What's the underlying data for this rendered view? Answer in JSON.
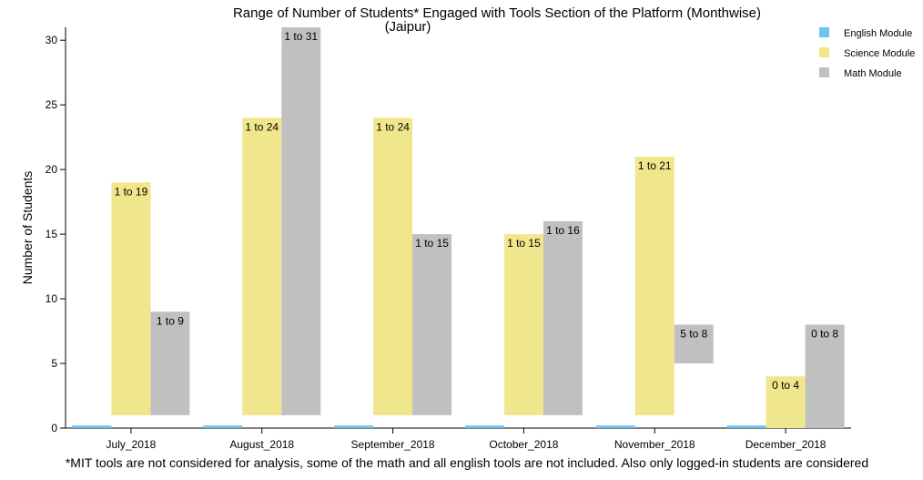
{
  "chart_data": {
    "type": "bar",
    "title": "Range of Number of Students* Engaged with Tools Section of the Platform (Monthwise)",
    "subtitle": "(Jaipur)",
    "xlabel": "",
    "ylabel": "Number of Students",
    "ylim": [
      0,
      31
    ],
    "yticks": [
      0,
      5,
      10,
      15,
      20,
      25,
      30
    ],
    "categories": [
      "July_2018",
      "August_2018",
      "September_2018",
      "October_2018",
      "November_2018",
      "December_2018"
    ],
    "legend_position": "top-right",
    "series": [
      {
        "name": "English Module",
        "color": "#6cc3ef",
        "low": [
          0,
          0,
          0,
          0,
          0,
          0
        ],
        "high": [
          0.2,
          0.2,
          0.2,
          0.2,
          0.2,
          0.2
        ],
        "labels": [
          "",
          "",
          "",
          "",
          "",
          ""
        ]
      },
      {
        "name": "Science Module",
        "color": "#f0e68c",
        "low": [
          1,
          1,
          1,
          1,
          1,
          0
        ],
        "high": [
          19,
          24,
          24,
          15,
          21,
          4
        ],
        "labels": [
          "1 to 19",
          "1 to 24",
          "1 to 24",
          "1 to 15",
          "1 to 21",
          "0 to 4"
        ]
      },
      {
        "name": "Math Module",
        "color": "#c0c0c0",
        "low": [
          1,
          1,
          1,
          1,
          5,
          0
        ],
        "high": [
          9,
          31,
          15,
          16,
          8,
          8
        ],
        "labels": [
          "1 to 9",
          "1 to 31",
          "1 to 15",
          "1 to 16",
          "5 to 8",
          "0 to 8"
        ]
      }
    ],
    "footnote": "*MIT tools are not considered for analysis, some of the math and all english tools are not included. Also only logged-in students are considered"
  }
}
